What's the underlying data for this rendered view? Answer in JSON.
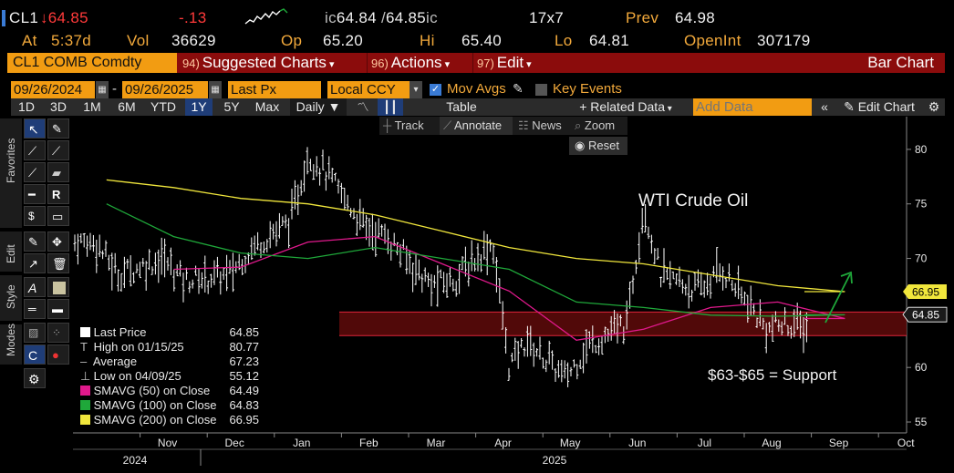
{
  "header": {
    "ticker": "CL1",
    "last": "↓64.85",
    "change": "-.13",
    "bidask_prefix": "ic",
    "bid": "64.84",
    "ask": "64.85",
    "ask_suffix": "ic",
    "size": "17x7",
    "prev_label": "Prev",
    "prev_value": "64.98",
    "at_label": "At",
    "at_value": "5:37d",
    "vol_label": "Vol",
    "vol_value": "36629",
    "op_label": "Op",
    "op_value": "65.20",
    "hi_label": "Hi",
    "hi_value": "65.40",
    "lo_label": "Lo",
    "lo_value": "64.81",
    "oi_label": "OpenInt",
    "oi_value": "307179"
  },
  "menubar": {
    "security": "CL1 COMB Comdty",
    "m1_num": "94)",
    "m1": "Suggested Charts",
    "m2_num": "96)",
    "m2": "Actions",
    "m3_num": "97)",
    "m3": "Edit",
    "chart_type": "Bar Chart"
  },
  "controls": {
    "start_date": "09/26/2024",
    "end_date": "09/26/2025",
    "field": "Last Px",
    "currency": "Local CCY",
    "mov_avgs": "Mov Avgs",
    "key_events": "Key Events"
  },
  "toolbar": {
    "periods": [
      "1D",
      "3D",
      "1M",
      "6M",
      "YTD",
      "1Y",
      "5Y",
      "Max"
    ],
    "selected_period": "1Y",
    "frequency": "Daily",
    "table": "Table",
    "related": "Related Data",
    "add_data_placeholder": "Add Data",
    "edit_chart": "Edit Chart"
  },
  "chart_tools": {
    "track": "Track",
    "annotate": "Annotate",
    "news": "News",
    "zoom": "Zoom",
    "reset": "Reset"
  },
  "side_tabs": {
    "favorites": "Favorites",
    "edit": "Edit",
    "style": "Style",
    "modes": "Modes"
  },
  "legend": {
    "rows": [
      {
        "label": "Last Price",
        "value": "64.85",
        "marker": "#ffffff"
      },
      {
        "label": "High on 01/15/25",
        "value": "80.77",
        "marker": "T"
      },
      {
        "label": "Average",
        "value": "67.23",
        "marker": "dash"
      },
      {
        "label": "Low on 04/09/25",
        "value": "55.12",
        "marker": "⊥"
      },
      {
        "label": "SMAVG (50)  on Close",
        "value": "64.49",
        "marker": "#e0198c"
      },
      {
        "label": "SMAVG (100)  on Close",
        "value": "64.83",
        "marker": "#1fa83a"
      },
      {
        "label": "SMAVG (200)  on Close",
        "value": "66.95",
        "marker": "#f0e63c"
      }
    ]
  },
  "annotations": {
    "title": "WTI Crude Oil",
    "support": "$63-$65 = Support"
  },
  "chart_data": {
    "type": "bar",
    "title": "WTI Crude Oil",
    "ylim": [
      54,
      83
    ],
    "yticks": [
      55,
      60,
      65,
      70,
      75,
      80
    ],
    "x_month_labels": [
      "Nov",
      "Dec",
      "Jan",
      "Feb",
      "Mar",
      "Apr",
      "May",
      "Jun",
      "Jul",
      "Aug",
      "Sep",
      "Oct"
    ],
    "x_year_labels": [
      "2024",
      "2025"
    ],
    "price_tags": [
      {
        "value": 66.95,
        "color": "#f0e63c"
      },
      {
        "value": 64.85,
        "color": "#ffffff"
      }
    ],
    "support_zone": [
      63,
      65
    ],
    "colors": {
      "bars": "#ffffff",
      "sma50": "#e0198c",
      "sma100": "#1fa83a",
      "sma200": "#f0e63c",
      "zone": "#5a0a0a",
      "zone_line": "#e0243a",
      "arrow": "#1fa83a"
    },
    "series": [
      {
        "name": "Last Price",
        "x": [
          "Oct",
          "Oct",
          "Nov",
          "Nov",
          "Dec",
          "Dec",
          "Jan",
          "Jan",
          "Jan",
          "Feb",
          "Feb",
          "Mar",
          "Mar",
          "Apr",
          "Apr",
          "Apr",
          "May",
          "May",
          "Jun",
          "Jun",
          "Jun",
          "Jul",
          "Jul",
          "Aug",
          "Aug",
          "Sep",
          "Sep",
          "Sep"
        ],
        "values": [
          71.5,
          68.5,
          70.0,
          68.0,
          68.5,
          71.0,
          73.5,
          79.5,
          78.0,
          73.0,
          72.0,
          67.5,
          68.0,
          71.5,
          60.0,
          62.5,
          59.0,
          62.0,
          64.0,
          75.0,
          68.5,
          67.0,
          69.0,
          63.5,
          64.0,
          63.0,
          63.5,
          64.85
        ]
      },
      {
        "name": "SMAVG (50)  on Close",
        "x": [
          "Nov",
          "Dec",
          "Jan",
          "Feb",
          "Mar",
          "Apr",
          "May",
          "Jun",
          "Jul",
          "Aug",
          "Sep"
        ],
        "values": [
          69.0,
          69.2,
          71.5,
          72.0,
          69.5,
          67.0,
          62.5,
          63.5,
          65.5,
          66.0,
          64.49
        ]
      },
      {
        "name": "SMAVG (100)  on Close",
        "x": [
          "Oct",
          "Nov",
          "Dec",
          "Jan",
          "Feb",
          "Mar",
          "Apr",
          "May",
          "Jun",
          "Jul",
          "Aug",
          "Sep"
        ],
        "values": [
          75.0,
          72.0,
          70.5,
          70.0,
          71.0,
          70.0,
          69.0,
          66.0,
          65.5,
          64.8,
          64.7,
          64.83
        ]
      },
      {
        "name": "SMAVG (200)  on Close",
        "x": [
          "Oct",
          "Nov",
          "Dec",
          "Jan",
          "Feb",
          "Mar",
          "Apr",
          "May",
          "Jun",
          "Jul",
          "Aug",
          "Sep"
        ],
        "values": [
          77.2,
          76.5,
          75.5,
          75.0,
          74.0,
          72.5,
          71.0,
          70.0,
          69.5,
          68.5,
          67.5,
          66.95
        ]
      }
    ]
  }
}
